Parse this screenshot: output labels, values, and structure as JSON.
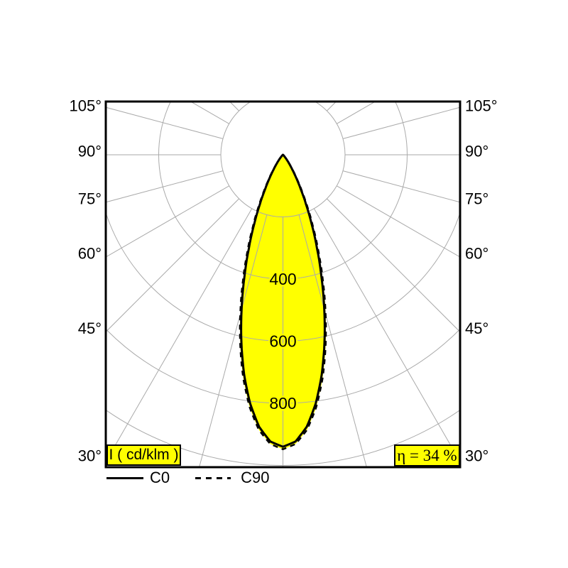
{
  "chart_data": {
    "type": "polar",
    "description": "Luminous intensity distribution polar curve",
    "unit": "cd/klm",
    "angle_unit": "°",
    "angle_ticks": [
      105,
      90,
      75,
      60,
      45,
      30
    ],
    "angle_step_deg": 15,
    "radial_ticks": [
      200,
      400,
      600,
      800,
      1000
    ],
    "radial_tick_labels": [
      400,
      600,
      800
    ],
    "grid": true,
    "legend_position": "bottom-left",
    "series": [
      {
        "name": "C0",
        "line": "solid",
        "points": [
          [
            0,
            940
          ],
          [
            2.5,
            924
          ],
          [
            5,
            879
          ],
          [
            7.5,
            808
          ],
          [
            10,
            719
          ],
          [
            12.5,
            618
          ],
          [
            15,
            514
          ],
          [
            17.5,
            413
          ],
          [
            20,
            321
          ],
          [
            22.5,
            242
          ],
          [
            25,
            176
          ],
          [
            27.5,
            123
          ],
          [
            30,
            84
          ],
          [
            32.5,
            55
          ],
          [
            35,
            35
          ],
          [
            37.5,
            22
          ],
          [
            40,
            13
          ],
          [
            42.5,
            7
          ],
          [
            45,
            4
          ],
          [
            47.5,
            2
          ],
          [
            50,
            1
          ],
          [
            52.5,
            0
          ]
        ]
      },
      {
        "name": "C90",
        "line": "dashed",
        "points": [
          [
            0,
            948
          ],
          [
            2.5,
            932
          ],
          [
            5,
            889
          ],
          [
            7.5,
            820
          ],
          [
            10,
            733
          ],
          [
            12.5,
            634
          ],
          [
            15,
            531
          ],
          [
            17.5,
            430
          ],
          [
            20,
            338
          ],
          [
            22.5,
            257
          ],
          [
            25,
            190
          ],
          [
            27.5,
            135
          ],
          [
            30,
            93
          ],
          [
            32.5,
            62
          ],
          [
            35,
            40
          ],
          [
            37.5,
            25
          ],
          [
            40,
            15
          ],
          [
            42.5,
            9
          ],
          [
            45,
            5
          ],
          [
            47.5,
            3
          ],
          [
            50,
            1
          ],
          [
            52.5,
            0
          ]
        ]
      }
    ],
    "colors": {
      "beam_fill": "#FFFF00",
      "grid": "#AAAAAA",
      "curve": "#000000",
      "box_bg": "#FFFF00",
      "box_border": "#000000"
    }
  },
  "boxes": {
    "quantity": "I ( cd/klm )",
    "efficiency": "η = 34 %"
  },
  "legend": {
    "items": [
      {
        "label": "C0",
        "style": "solid"
      },
      {
        "label": "C90",
        "style": "dashed"
      }
    ]
  }
}
